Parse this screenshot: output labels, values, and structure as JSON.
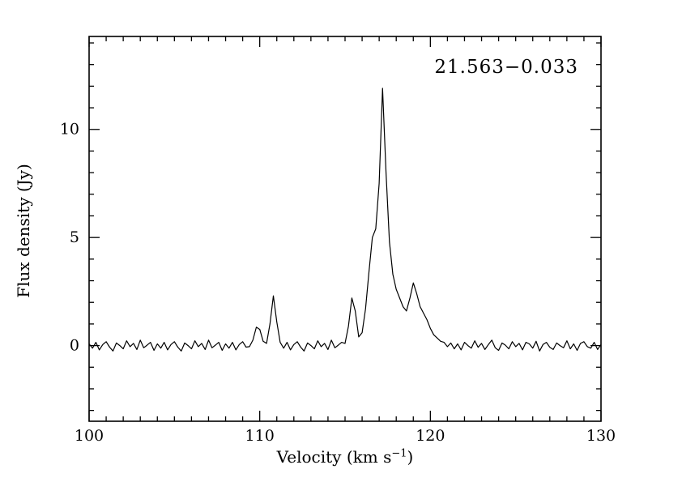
{
  "chart_data": {
    "type": "line",
    "title": "21.563−0.033",
    "xlabel": "Velocity (km s^-1)",
    "xlabel_main": "Velocity (km s",
    "xlabel_exp": "−1",
    "xlabel_close": ")",
    "ylabel": "Flux density (Jy)",
    "xlim": [
      100,
      130
    ],
    "ylim": [
      -3.5,
      14.3
    ],
    "x_major_ticks": [
      100,
      110,
      120,
      130
    ],
    "y_major_ticks": [
      0,
      5,
      10
    ],
    "x_minor_step": 1,
    "y_minor_step": 1,
    "grid": false,
    "legend": "none",
    "line_color": "#000000",
    "frame_color": "#000000",
    "background_color": "#ffffff",
    "peak_summary": [
      {
        "velocity": 109.9,
        "flux": 0.9
      },
      {
        "velocity": 110.8,
        "flux": 2.3
      },
      {
        "velocity": 115.4,
        "flux": 2.2
      },
      {
        "velocity": 116.7,
        "flux": 5.4
      },
      {
        "velocity": 117.2,
        "flux": 11.9
      },
      {
        "velocity": 119.0,
        "flux": 2.9
      }
    ],
    "v_start": 100.0,
    "v_step": 0.2,
    "flux": [
      0.08,
      -0.12,
      0.15,
      -0.2,
      0.05,
      0.18,
      -0.07,
      -0.25,
      0.12,
      0.0,
      -0.15,
      0.22,
      -0.05,
      0.1,
      -0.18,
      0.25,
      -0.1,
      0.02,
      0.15,
      -0.22,
      0.08,
      -0.12,
      0.15,
      -0.2,
      0.05,
      0.18,
      -0.07,
      -0.25,
      0.12,
      0.0,
      -0.15,
      0.22,
      -0.05,
      0.1,
      -0.18,
      0.25,
      -0.1,
      0.02,
      0.15,
      -0.22,
      0.08,
      -0.12,
      0.15,
      -0.2,
      0.05,
      0.18,
      -0.07,
      -0.05,
      0.25,
      0.85,
      0.75,
      0.2,
      0.1,
      1.0,
      2.3,
      1.1,
      0.15,
      -0.12,
      0.15,
      -0.2,
      0.05,
      0.18,
      -0.07,
      -0.25,
      0.12,
      0.0,
      -0.15,
      0.22,
      -0.05,
      0.1,
      -0.18,
      0.25,
      -0.1,
      0.02,
      0.15,
      0.1,
      0.9,
      2.2,
      1.6,
      0.4,
      0.6,
      1.7,
      3.4,
      5.0,
      5.4,
      7.5,
      11.9,
      8.0,
      4.8,
      3.3,
      2.6,
      2.2,
      1.8,
      1.6,
      2.2,
      2.9,
      2.4,
      1.8,
      1.5,
      1.2,
      0.8,
      0.5,
      0.35,
      0.2,
      0.15,
      -0.05,
      0.12,
      -0.15,
      0.08,
      -0.2,
      0.15,
      0.0,
      -0.12,
      0.22,
      -0.08,
      0.1,
      -0.18,
      0.05,
      0.25,
      -0.1,
      -0.22,
      0.12,
      0.02,
      -0.15,
      0.18,
      -0.05,
      0.1,
      -0.2,
      0.15,
      0.08,
      -0.12,
      0.2,
      -0.25,
      0.05,
      0.15,
      -0.08,
      -0.18,
      0.12,
      0.0,
      -0.1,
      0.22,
      -0.15,
      0.08,
      -0.22,
      0.1,
      0.18,
      -0.05,
      -0.12,
      0.15,
      -0.18,
      0.05
    ]
  }
}
